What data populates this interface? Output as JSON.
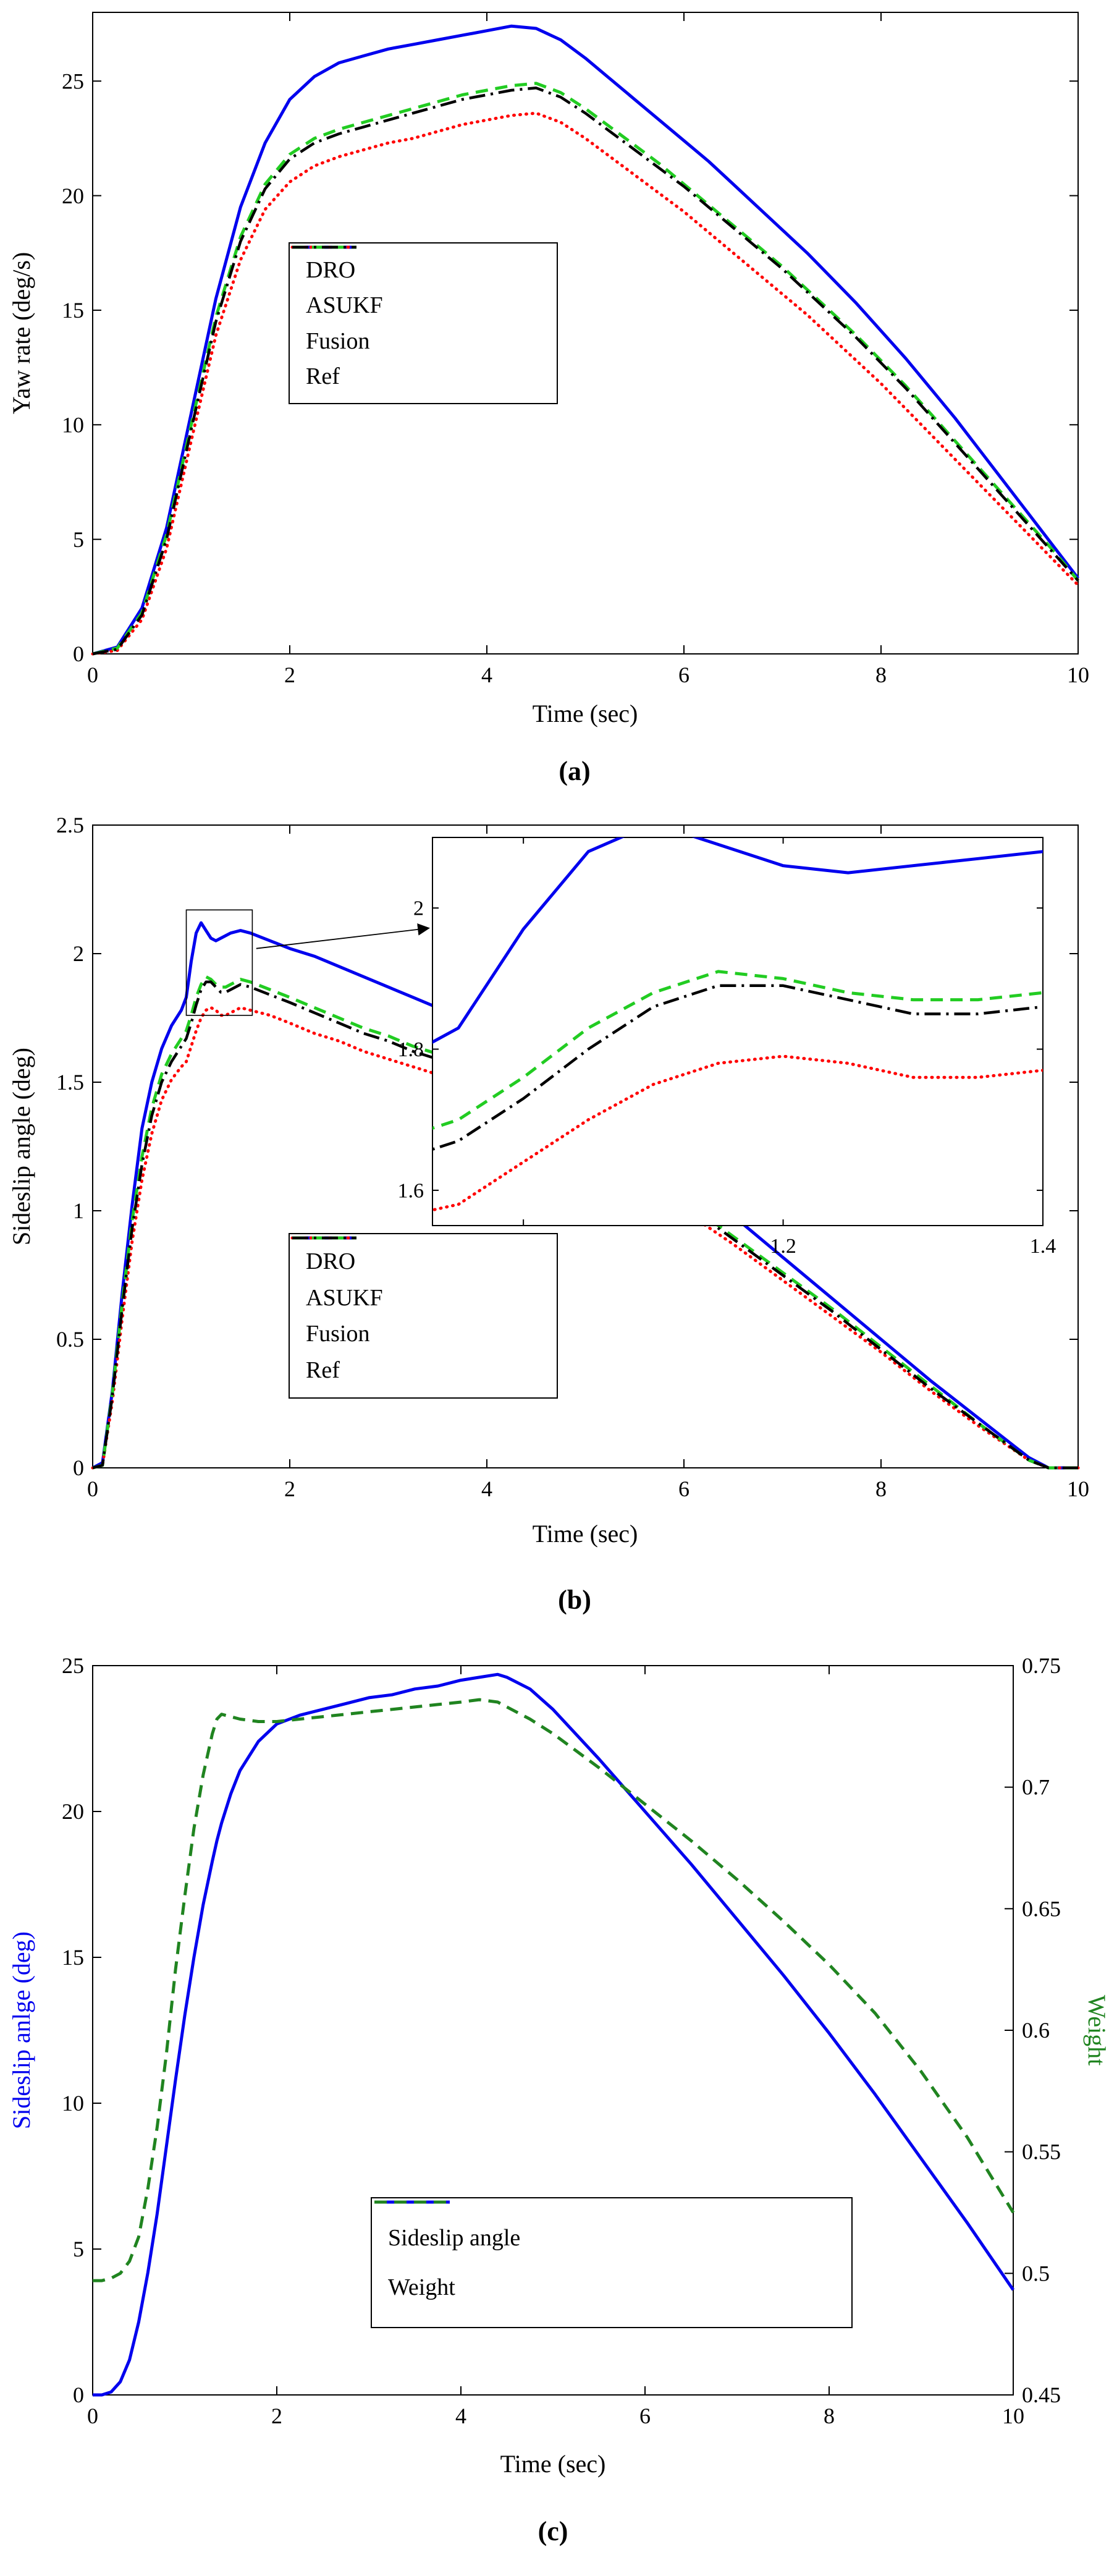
{
  "figure": {
    "background": "#ffffff",
    "panels": [
      "(a)",
      "(b)",
      "(c)"
    ]
  },
  "chart_data": [
    {
      "type": "line",
      "panel_label": "(a)",
      "xlabel": "Time (sec)",
      "ylabel": "Yaw rate (deg/s)",
      "xlim": [
        0,
        10
      ],
      "ylim": [
        0,
        28
      ],
      "xticks": {
        "values": [
          0,
          2,
          4,
          6,
          8,
          10
        ],
        "labels": [
          "0",
          "2",
          "4",
          "6",
          "8",
          "10"
        ]
      },
      "yticks": {
        "values": [
          0,
          5,
          10,
          15,
          20,
          25
        ],
        "labels": [
          "0",
          "5",
          "10",
          "15",
          "20",
          "25"
        ]
      },
      "legend_position": "center-left",
      "x": [
        0,
        0.25,
        0.5,
        0.75,
        1,
        1.25,
        1.5,
        1.75,
        2,
        2.25,
        2.5,
        2.75,
        3,
        3.25,
        3.5,
        3.75,
        4,
        4.25,
        4.5,
        4.75,
        5,
        5.25,
        5.5,
        5.75,
        6,
        6.25,
        6.5,
        6.75,
        7,
        7.25,
        7.5,
        7.75,
        8,
        8.25,
        8.5,
        8.75,
        9,
        9.25,
        9.5,
        9.75,
        10
      ],
      "series": [
        {
          "name": "DRO",
          "color": "#0000EE",
          "style": "solid",
          "values": [
            0,
            0.3,
            2,
            5.5,
            10.5,
            15.5,
            19.5,
            22.3,
            24.2,
            25.2,
            25.8,
            26.1,
            26.4,
            26.6,
            26.8,
            27,
            27.2,
            27.4,
            27.3,
            26.8,
            26,
            25.1,
            24.2,
            23.3,
            22.4,
            21.5,
            20.5,
            19.5,
            18.5,
            17.5,
            16.4,
            15.3,
            14.1,
            12.9,
            11.6,
            10.3,
            8.9,
            7.5,
            6.1,
            4.7,
            3.3
          ]
        },
        {
          "name": "ASUKF",
          "color": "#FF0000",
          "style": "dotted",
          "values": [
            0,
            0.15,
            1.5,
            4.6,
            9.3,
            13.9,
            17.2,
            19.4,
            20.6,
            21.3,
            21.7,
            22,
            22.3,
            22.5,
            22.8,
            23.1,
            23.3,
            23.5,
            23.6,
            23.2,
            22.5,
            21.7,
            20.9,
            20.1,
            19.3,
            18.4,
            17.5,
            16.6,
            15.7,
            14.8,
            13.8,
            12.8,
            11.8,
            10.7,
            9.6,
            8.5,
            7.4,
            6.3,
            5.2,
            4.1,
            3
          ]
        },
        {
          "name": "Fusion",
          "color": "#22CC22",
          "style": "dashed",
          "values": [
            0,
            0.25,
            1.8,
            5.2,
            10,
            14.7,
            18.2,
            20.5,
            21.8,
            22.5,
            22.9,
            23.2,
            23.5,
            23.8,
            24.1,
            24.4,
            24.6,
            24.8,
            24.9,
            24.5,
            23.8,
            23,
            22.2,
            21.4,
            20.5,
            19.6,
            18.7,
            17.8,
            16.9,
            15.9,
            14.9,
            13.9,
            12.8,
            11.7,
            10.5,
            9.3,
            8.1,
            6.9,
            5.7,
            4.5,
            3.2
          ]
        },
        {
          "name": "Ref",
          "color": "#000000",
          "style": "dashdot",
          "values": [
            0,
            0.2,
            1.7,
            5,
            9.8,
            14.5,
            18,
            20.3,
            21.6,
            22.3,
            22.7,
            23,
            23.3,
            23.6,
            23.9,
            24.2,
            24.4,
            24.6,
            24.7,
            24.3,
            23.6,
            22.8,
            22,
            21.2,
            20.4,
            19.5,
            18.6,
            17.7,
            16.8,
            15.8,
            14.8,
            13.8,
            12.7,
            11.6,
            10.4,
            9.2,
            8,
            6.8,
            5.6,
            4.4,
            3.2
          ]
        }
      ]
    },
    {
      "type": "line",
      "panel_label": "(b)",
      "xlabel": "Time (sec)",
      "ylabel": "Sideslip angle (deg)",
      "xlim": [
        0,
        10
      ],
      "ylim": [
        0,
        2.5
      ],
      "xticks": {
        "values": [
          0,
          2,
          4,
          6,
          8,
          10
        ],
        "labels": [
          "0",
          "2",
          "4",
          "6",
          "8",
          "10"
        ]
      },
      "yticks": {
        "values": [
          0,
          0.5,
          1,
          1.5,
          2,
          2.5
        ],
        "labels": [
          "0",
          "0.5",
          "1",
          "1.5",
          "2",
          "2.5"
        ]
      },
      "legend_position": "center-left",
      "inset": {
        "xlim": [
          0.93,
          1.4
        ],
        "ylim": [
          1.55,
          2.1
        ],
        "xticks": {
          "values": [
            1,
            1.2,
            1.4
          ],
          "labels": [
            "1",
            "1.2",
            "1.4"
          ]
        },
        "yticks": {
          "values": [
            1.6,
            1.8,
            2
          ],
          "labels": [
            "1.6",
            "1.8",
            "2"
          ]
        }
      },
      "zoom_rect": {
        "x": [
          0.95,
          1.62
        ],
        "y": [
          1.76,
          2.17
        ]
      },
      "x": [
        0,
        0.1,
        0.2,
        0.3,
        0.4,
        0.5,
        0.6,
        0.7,
        0.8,
        0.9,
        0.95,
        1,
        1.05,
        1.1,
        1.15,
        1.2,
        1.25,
        1.3,
        1.35,
        1.4,
        1.5,
        1.6,
        1.8,
        2,
        2.25,
        2.5,
        2.75,
        3,
        3.25,
        3.5,
        3.75,
        4,
        4.1,
        4.25,
        4.5,
        4.75,
        5,
        5.5,
        6,
        6.5,
        7,
        7.5,
        8,
        8.5,
        9,
        9.5,
        9.7,
        10
      ],
      "series": [
        {
          "name": "DRO",
          "color": "#0000EE",
          "style": "solid",
          "values": [
            0,
            0.02,
            0.3,
            0.68,
            1.02,
            1.32,
            1.5,
            1.63,
            1.72,
            1.78,
            1.83,
            1.97,
            2.08,
            2.12,
            2.09,
            2.06,
            2.05,
            2.06,
            2.07,
            2.08,
            2.09,
            2.08,
            2.05,
            2.02,
            1.99,
            1.95,
            1.91,
            1.87,
            1.83,
            1.79,
            1.75,
            1.71,
            1.69,
            1.64,
            1.57,
            1.5,
            1.43,
            1.28,
            1.13,
            0.98,
            0.82,
            0.66,
            0.5,
            0.34,
            0.19,
            0.04,
            0,
            0
          ]
        },
        {
          "name": "ASUKF",
          "color": "#FF0000",
          "style": "dotted",
          "values": [
            0,
            0.01,
            0.26,
            0.58,
            0.88,
            1.12,
            1.3,
            1.43,
            1.51,
            1.56,
            1.58,
            1.64,
            1.7,
            1.75,
            1.78,
            1.79,
            1.78,
            1.76,
            1.76,
            1.77,
            1.79,
            1.78,
            1.76,
            1.73,
            1.69,
            1.66,
            1.62,
            1.59,
            1.56,
            1.53,
            1.5,
            1.47,
            1.45,
            1.42,
            1.37,
            1.31,
            1.26,
            1.13,
            1,
            0.87,
            0.73,
            0.59,
            0.45,
            0.3,
            0.16,
            0.03,
            0,
            0
          ]
        },
        {
          "name": "Fusion",
          "color": "#22CC22",
          "style": "dashed",
          "values": [
            0,
            0.01,
            0.29,
            0.64,
            0.96,
            1.21,
            1.4,
            1.53,
            1.61,
            1.67,
            1.7,
            1.76,
            1.83,
            1.88,
            1.91,
            1.9,
            1.88,
            1.87,
            1.87,
            1.88,
            1.9,
            1.89,
            1.86,
            1.83,
            1.79,
            1.75,
            1.71,
            1.68,
            1.64,
            1.61,
            1.58,
            1.55,
            1.53,
            1.49,
            1.43,
            1.37,
            1.31,
            1.17,
            1.04,
            0.9,
            0.76,
            0.62,
            0.47,
            0.32,
            0.17,
            0.03,
            0,
            0
          ]
        },
        {
          "name": "Ref",
          "color": "#000000",
          "style": "dashdot",
          "values": [
            0,
            0.01,
            0.28,
            0.62,
            0.93,
            1.18,
            1.37,
            1.5,
            1.58,
            1.64,
            1.67,
            1.73,
            1.8,
            1.86,
            1.89,
            1.89,
            1.87,
            1.85,
            1.85,
            1.86,
            1.88,
            1.87,
            1.84,
            1.81,
            1.77,
            1.73,
            1.69,
            1.66,
            1.62,
            1.59,
            1.56,
            1.53,
            1.51,
            1.47,
            1.41,
            1.35,
            1.29,
            1.16,
            1.03,
            0.89,
            0.75,
            0.61,
            0.46,
            0.31,
            0.17,
            0.03,
            0,
            0
          ]
        }
      ]
    },
    {
      "type": "line",
      "panel_label": "(c)",
      "xlabel": "Time (sec)",
      "ylabel_left": "Sideslip anlge (deg)",
      "ylabel_right": "Weight",
      "axis_colors": {
        "left": "#0000EE",
        "right": "#208420"
      },
      "xlim": [
        0,
        10
      ],
      "ylim_left": [
        0,
        25
      ],
      "ylim_right": [
        0.45,
        0.75
      ],
      "xticks": {
        "values": [
          0,
          2,
          4,
          6,
          8,
          10
        ],
        "labels": [
          "0",
          "2",
          "4",
          "6",
          "8",
          "10"
        ]
      },
      "yticks_left": {
        "values": [
          0,
          5,
          10,
          15,
          20,
          25
        ],
        "labels": [
          "0",
          "5",
          "10",
          "15",
          "20",
          "25"
        ]
      },
      "yticks_right": {
        "values": [
          0.45,
          0.5,
          0.55,
          0.6,
          0.65,
          0.7,
          0.75
        ],
        "labels": [
          "0.45",
          "0.5",
          "0.55",
          "0.6",
          "0.65",
          "0.7",
          "0.75"
        ]
      },
      "legend_position": "bottom-center",
      "x": [
        0,
        0.1,
        0.2,
        0.3,
        0.4,
        0.5,
        0.6,
        0.7,
        0.8,
        0.9,
        1,
        1.1,
        1.2,
        1.3,
        1.35,
        1.4,
        1.5,
        1.6,
        1.8,
        2,
        2.25,
        2.5,
        2.75,
        3,
        3.25,
        3.5,
        3.75,
        4,
        4.2,
        4.4,
        4.5,
        4.75,
        5,
        5.5,
        6,
        6.5,
        7,
        7.5,
        8,
        8.5,
        9,
        9.5,
        10
      ],
      "series": [
        {
          "name": "Sideslip angle",
          "color": "#0000EE",
          "style": "solid",
          "axis": "left",
          "values": [
            0,
            0,
            0.1,
            0.45,
            1.2,
            2.5,
            4.2,
            6.2,
            8.5,
            10.8,
            13,
            15,
            16.8,
            18.3,
            19,
            19.6,
            20.6,
            21.4,
            22.4,
            23,
            23.3,
            23.5,
            23.7,
            23.9,
            24,
            24.2,
            24.3,
            24.5,
            24.6,
            24.7,
            24.6,
            24.2,
            23.5,
            21.8,
            20,
            18.2,
            16.3,
            14.4,
            12.4,
            10.3,
            8.1,
            5.9,
            3.6
          ]
        },
        {
          "name": "Weight",
          "color": "#208420",
          "style": "dashed",
          "axis": "right",
          "values": [
            0.497,
            0.497,
            0.498,
            0.5,
            0.505,
            0.515,
            0.535,
            0.56,
            0.59,
            0.625,
            0.655,
            0.683,
            0.705,
            0.722,
            0.728,
            0.73,
            0.729,
            0.728,
            0.727,
            0.727,
            0.728,
            0.729,
            0.73,
            0.731,
            0.732,
            0.733,
            0.734,
            0.735,
            0.736,
            0.735,
            0.733,
            0.728,
            0.722,
            0.708,
            0.693,
            0.678,
            0.662,
            0.645,
            0.627,
            0.607,
            0.583,
            0.556,
            0.525
          ]
        }
      ]
    }
  ]
}
